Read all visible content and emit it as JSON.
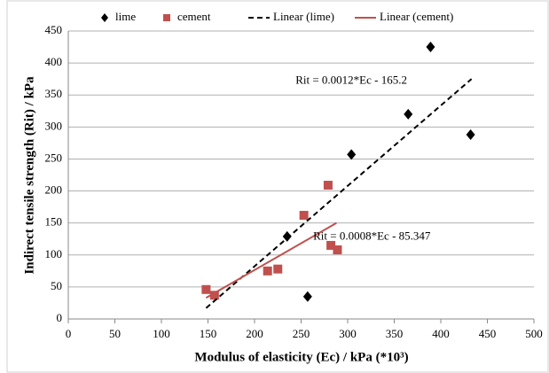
{
  "chart_data": {
    "type": "scatter",
    "x_label": "Modulus of elasticity (Ec) / kPa (*10³)",
    "y_label": "Indirect tensile strength (Rit) / kPa",
    "xlim": [
      0,
      500
    ],
    "xticks": [
      0,
      50,
      100,
      150,
      200,
      250,
      300,
      350,
      400,
      450,
      500
    ],
    "ylim": [
      0,
      450
    ],
    "yticks": [
      0,
      50,
      100,
      150,
      200,
      250,
      300,
      350,
      400,
      450
    ],
    "grid": true,
    "legend": "top",
    "series": [
      {
        "name": "lime",
        "color": "#000000",
        "marker": "diamond",
        "x": [
          235,
          257,
          304,
          365,
          389,
          432
        ],
        "values": [
          129,
          35,
          257,
          320,
          425,
          288
        ]
      },
      {
        "name": "cement",
        "color": "#c0504d",
        "marker": "square",
        "x": [
          148,
          157,
          214,
          225,
          253,
          279,
          282,
          289
        ],
        "values": [
          46,
          37,
          75,
          78,
          162,
          209,
          115,
          108
        ]
      },
      {
        "name": "Linear (lime)",
        "color": "#000000",
        "line": "dashed",
        "x": [
          148,
          433
        ],
        "values": [
          17,
          375
        ]
      },
      {
        "name": "Linear (cement)",
        "color": "#c0504d",
        "line": "solid",
        "x": [
          148,
          288
        ],
        "values": [
          33,
          150
        ]
      }
    ],
    "annotations": [
      {
        "text": "Rit = 0.0012*Ec - 165.2",
        "x": 244,
        "y": 372
      },
      {
        "text": "Rit = 0.0008*Ec - 85.347",
        "x": 263,
        "y": 128
      }
    ]
  }
}
